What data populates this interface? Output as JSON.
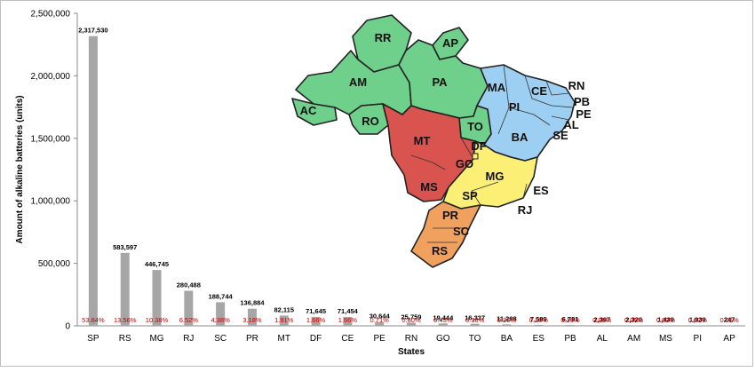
{
  "chart_data": {
    "type": "bar",
    "title": "",
    "xlabel": "States",
    "ylabel": "Amount of alkaline batteries (units)",
    "ylim": [
      0,
      2500000
    ],
    "yticks": [
      "0",
      "500,000",
      "1,000,000",
      "1,500,000",
      "2,000,000",
      "2,500,000"
    ],
    "ytick_values": [
      0,
      500000,
      1000000,
      1500000,
      2000000,
      2500000
    ],
    "grid": false,
    "bar_color": "#a6a6a6",
    "percent_color": "#c00000",
    "categories": [
      "SP",
      "RS",
      "MG",
      "RJ",
      "SC",
      "PR",
      "MT",
      "DF",
      "CE",
      "PE",
      "RN",
      "GO",
      "TO",
      "BA",
      "ES",
      "PB",
      "AL",
      "AM",
      "MS",
      "PI",
      "AP"
    ],
    "values": [
      2317530,
      583597,
      446745,
      280488,
      188744,
      136884,
      82115,
      71645,
      71454,
      30644,
      25759,
      19444,
      16337,
      11298,
      7589,
      6781,
      2367,
      2320,
      1439,
      1039,
      247
    ],
    "value_labels": [
      "2,317,530",
      "583,597",
      "446,745",
      "280,488",
      "188,744",
      "136,884",
      "82,115",
      "71,645",
      "71,454",
      "30,644",
      "25,759",
      "19,444",
      "16,337",
      "11,298",
      "7,589",
      "6,781",
      "2,367",
      "2,320",
      "1,439",
      "1,039",
      "247"
    ],
    "percent_labels": [
      "53.84%",
      "13.56%",
      "10.38%",
      "6.52%",
      "4.38%",
      "3.18%",
      "1.91%",
      "1.66%",
      "1.66%",
      "0.71%",
      "0.60%",
      "0.45%",
      "0.38%",
      "0.26%",
      "0.18%",
      "0.16%",
      "0.05%",
      "0.05%",
      "0.03%",
      "0.02%",
      "0.01%"
    ]
  },
  "map": {
    "region_colors": {
      "north": "#6fd08c",
      "northeast": "#9dcff2",
      "central_west": "#d9534f",
      "southeast": "#fbef76",
      "south": "#f0a15e"
    },
    "states": [
      "RR",
      "AP",
      "AM",
      "PA",
      "AC",
      "RO",
      "MA",
      "CE",
      "RN",
      "PB",
      "PE",
      "AL",
      "PI",
      "TO",
      "SE",
      "BA",
      "MT",
      "DF",
      "GO",
      "MG",
      "MS",
      "ES",
      "SP",
      "RJ",
      "PR",
      "SC",
      "RS"
    ]
  }
}
